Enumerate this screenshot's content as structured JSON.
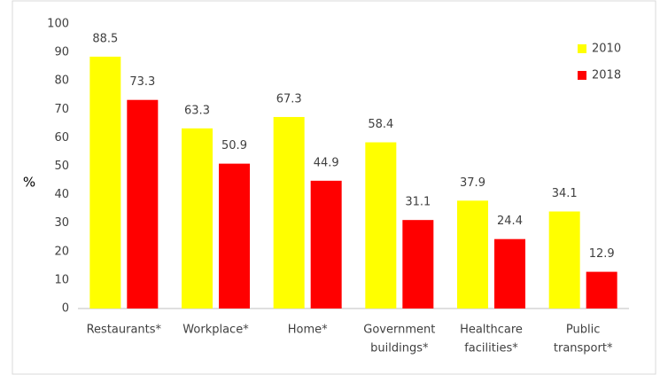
{
  "chart_data": {
    "type": "bar",
    "y_label": "%",
    "categories": [
      [
        "Restaurants*"
      ],
      [
        "Workplace*"
      ],
      [
        "Home*"
      ],
      [
        "Government",
        "buildings*"
      ],
      [
        "Healthcare",
        "facilities*"
      ],
      [
        "Public",
        "transport*"
      ]
    ],
    "series": [
      {
        "name": "2010",
        "color": "#ffff00",
        "values": [
          88.5,
          63.3,
          67.3,
          58.4,
          37.9,
          34.1
        ]
      },
      {
        "name": "2018",
        "color": "#ff0000",
        "values": [
          73.3,
          50.9,
          44.9,
          31.1,
          24.4,
          12.9
        ]
      }
    ],
    "ylim": [
      0,
      100
    ],
    "yticks": [
      0,
      10,
      20,
      30,
      40,
      50,
      60,
      70,
      80,
      90,
      100
    ],
    "grid": false,
    "legend": "top-right"
  }
}
